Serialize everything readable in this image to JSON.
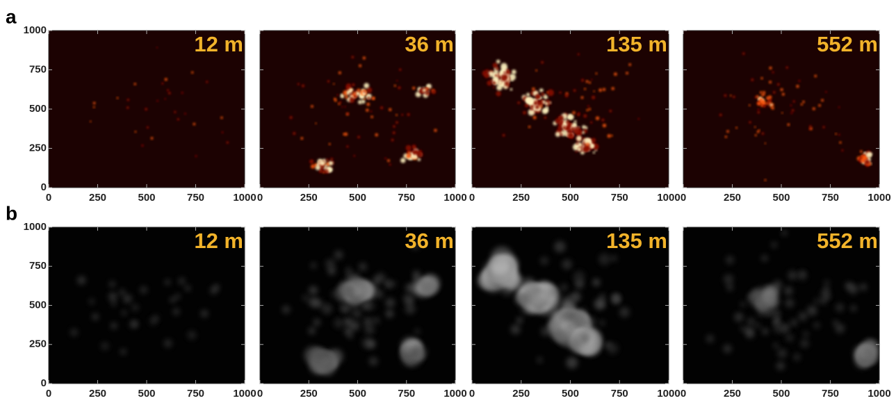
{
  "rows": [
    {
      "label": "a",
      "panels": [
        "12 m",
        "36 m",
        "135 m",
        "552 m"
      ]
    },
    {
      "label": "b",
      "panels": [
        "12 m",
        "36 m",
        "135 m",
        "552 m"
      ]
    }
  ],
  "axes": {
    "xticks": [
      0,
      250,
      500,
      750,
      1000
    ],
    "yticks": [
      0,
      250,
      500,
      750,
      1000
    ]
  }
}
